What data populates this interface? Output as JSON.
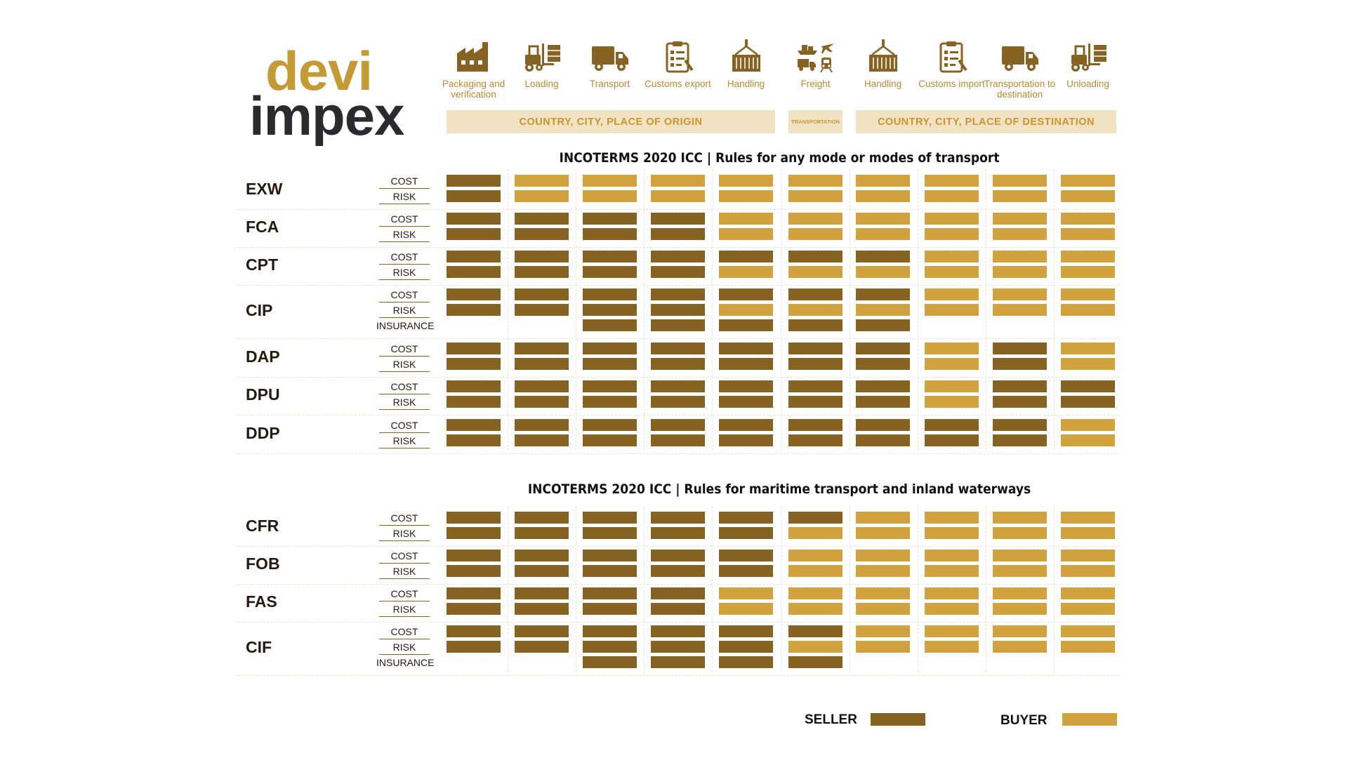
{
  "brand": {
    "line1": "devi",
    "line2": "impex"
  },
  "colors": {
    "seller": "#876323",
    "buyer": "#d2a23f",
    "region_bg": "#f1e2c4",
    "region_text": "#c9952c",
    "logo_gold": "#c49a35",
    "logo_dark": "#2b2a2f",
    "text_dark": "#241a0e",
    "label_gold": "#b88a2f"
  },
  "steps": [
    {
      "label": "Packaging and verification",
      "icon": "factory-icon"
    },
    {
      "label": "Loading",
      "icon": "forklift-icon"
    },
    {
      "label": "Transport",
      "icon": "truck-icon"
    },
    {
      "label": "Customs export",
      "icon": "clipboard-icon"
    },
    {
      "label": "Handling",
      "icon": "crane-container-icon"
    },
    {
      "label": "Freight",
      "icon": "freight-icon"
    },
    {
      "label": "Handling",
      "icon": "crane-container-icon"
    },
    {
      "label": "Customs import",
      "icon": "clipboard-icon"
    },
    {
      "label": "Transportation to destination",
      "icon": "truck-icon"
    },
    {
      "label": "Unloading",
      "icon": "forklift-icon"
    }
  ],
  "regions": {
    "origin": "COUNTRY, CITY, PLACE OF ORIGIN",
    "transport": "TRANSPORTATION",
    "destination": "COUNTRY, CITY, PLACE OF DESTINATION"
  },
  "section1_title": "INCOTERMS 2020 ICC | Rules for any mode or modes of transport",
  "section2_title": "INCOTERMS 2020 ICC | Rules for maritime transport and inland waterways",
  "row_labels": {
    "cost": "COST",
    "risk": "RISK",
    "insurance": "INSURANCE"
  },
  "legend": {
    "seller": "SELLER",
    "buyer": "BUYER"
  },
  "chart_data": {
    "type": "table",
    "columns": [
      "Packaging and verification",
      "Loading",
      "Transport",
      "Customs export",
      "Handling",
      "Freight",
      "Handling",
      "Customs import",
      "Transportation to destination",
      "Unloading"
    ],
    "sections": [
      {
        "title": "INCOTERMS 2020 ICC | Rules for any mode or modes of transport",
        "terms": [
          {
            "name": "EXW",
            "cost": "SBBBBBBBBB",
            "risk": "SBBBBBBBBB"
          },
          {
            "name": "FCA",
            "cost": "SSSSBBBBBB",
            "risk": "SSSSBBBBBB"
          },
          {
            "name": "CPT",
            "cost": "SSSSSSSBBB",
            "risk": "SSSSBBBBBB"
          },
          {
            "name": "CIP",
            "cost": "SSSSSSSBBB",
            "risk": "SSSSBBBBBB",
            "insurance": "--SSSSS---"
          },
          {
            "name": "DAP",
            "cost": "SSSSSSSBSB",
            "risk": "SSSSSSSBSB"
          },
          {
            "name": "DPU",
            "cost": "SSSSSSSBSS",
            "risk": "SSSSSSSBSS"
          },
          {
            "name": "DDP",
            "cost": "SSSSSSSSSB",
            "risk": "SSSSSSSSSB"
          }
        ]
      },
      {
        "title": "INCOTERMS 2020 ICC | Rules for maritime transport and inland waterways",
        "terms": [
          {
            "name": "CFR",
            "cost": "SSSSSSBBBB",
            "risk": "SSSSSBBBBB"
          },
          {
            "name": "FOB",
            "cost": "SSSSSBBBBB",
            "risk": "SSSSSBBBBB"
          },
          {
            "name": "FAS",
            "cost": "SSSSBBBBBB",
            "risk": "SSSSBBBBBB"
          },
          {
            "name": "CIF",
            "cost": "SSSSSSBBBB",
            "risk": "SSSSSBBBBB",
            "insurance": "--SSSS----"
          }
        ]
      }
    ],
    "legend": [
      {
        "code": "S",
        "label": "SELLER"
      },
      {
        "code": "B",
        "label": "BUYER"
      }
    ]
  }
}
